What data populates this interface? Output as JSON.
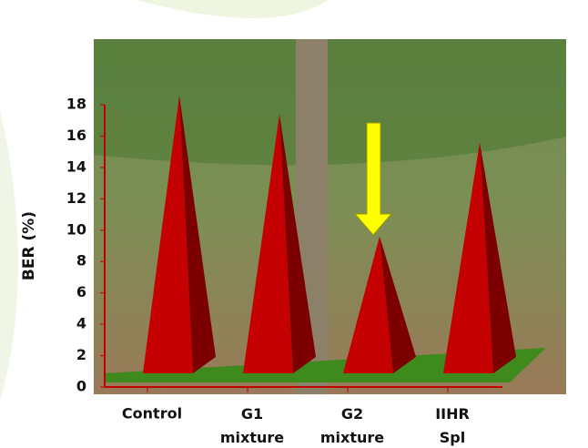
{
  "chart_data": {
    "type": "pyramid",
    "categories": [
      "Control",
      "G1 mixture",
      "G2 mixture",
      "IIHR Spl"
    ],
    "values": [
      18.6,
      17.4,
      9.6,
      15.6
    ],
    "color": "#c40000",
    "y_label": "BER (%)",
    "ylim": [
      0,
      18
    ],
    "yticks": [
      0,
      2,
      4,
      6,
      8,
      10,
      12,
      14,
      16,
      18
    ],
    "grid": false
  }
}
